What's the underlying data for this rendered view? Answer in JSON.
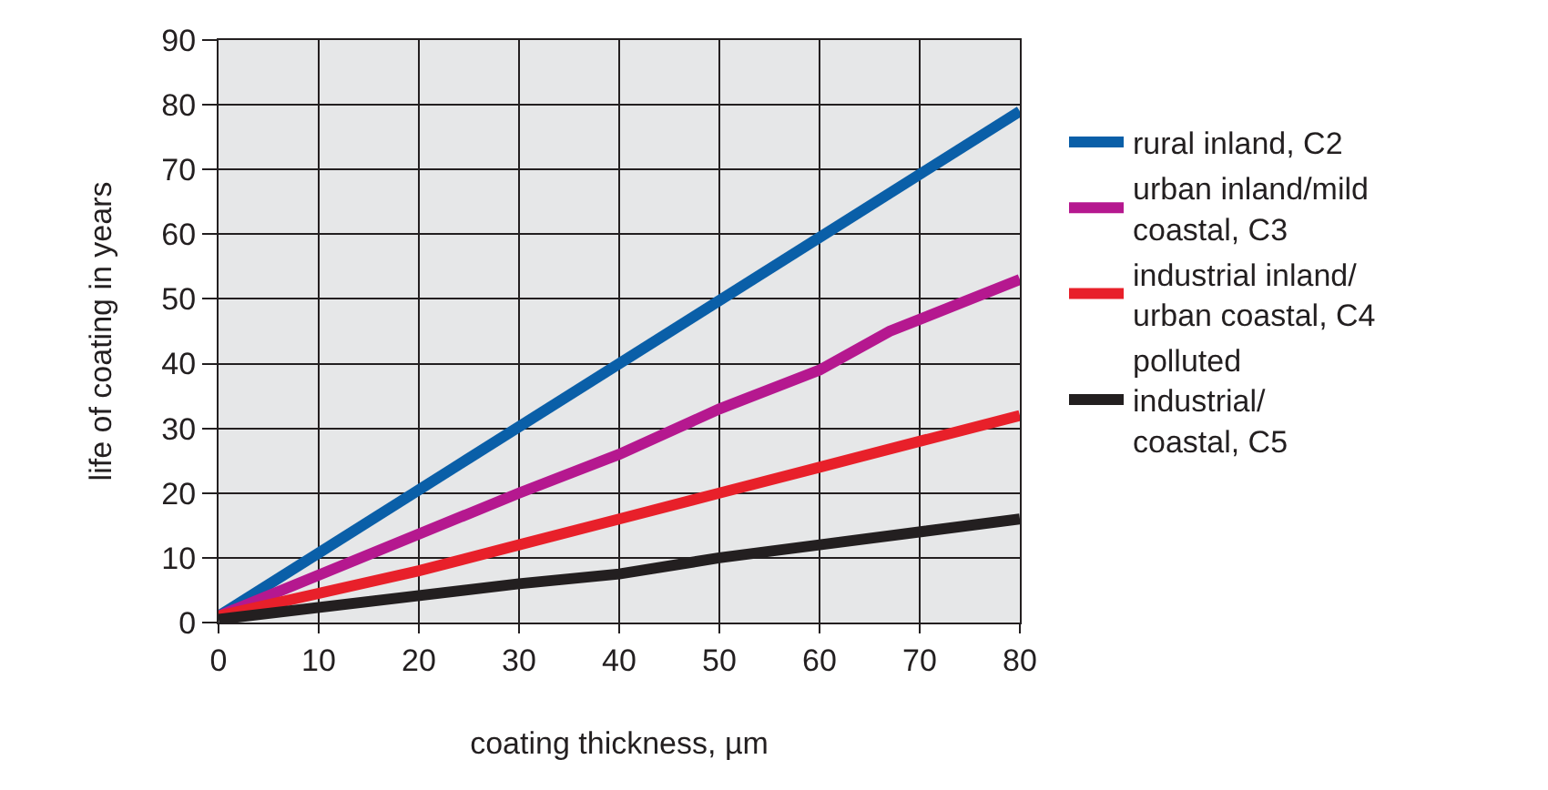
{
  "chart_data": {
    "type": "line",
    "xlabel": "coating thickness, µm",
    "ylabel": "life of coating in years",
    "xlim": [
      0,
      80
    ],
    "ylim": [
      0,
      90
    ],
    "xticks": [
      0,
      10,
      20,
      30,
      40,
      50,
      60,
      70,
      80
    ],
    "yticks": [
      0,
      10,
      20,
      30,
      40,
      50,
      60,
      70,
      80,
      90
    ],
    "grid": true,
    "legend": "right",
    "marker": "none",
    "line_style": "solid",
    "series": [
      {
        "name": "rural inland, C2",
        "color": "#0a5fa8",
        "x": [
          0,
          80
        ],
        "values": [
          1,
          79
        ]
      },
      {
        "name": "urban inland/mild coastal, C3",
        "color": "#b5188f",
        "x": [
          0,
          30,
          40,
          50,
          60,
          67,
          80
        ],
        "values": [
          1,
          20,
          26,
          33,
          39,
          45,
          53
        ]
      },
      {
        "name": "industrial inland/ urban coastal, C4",
        "color": "#e8202a",
        "x": [
          0,
          20,
          30,
          40,
          50,
          60,
          80
        ],
        "values": [
          1,
          8,
          12,
          16,
          20,
          24,
          32
        ]
      },
      {
        "name": "polluted industrial/ coastal, C5",
        "color": "#231f20",
        "x": [
          0,
          30,
          40,
          50,
          60,
          80
        ],
        "values": [
          0.5,
          6,
          7.5,
          10,
          12,
          16
        ]
      }
    ]
  }
}
